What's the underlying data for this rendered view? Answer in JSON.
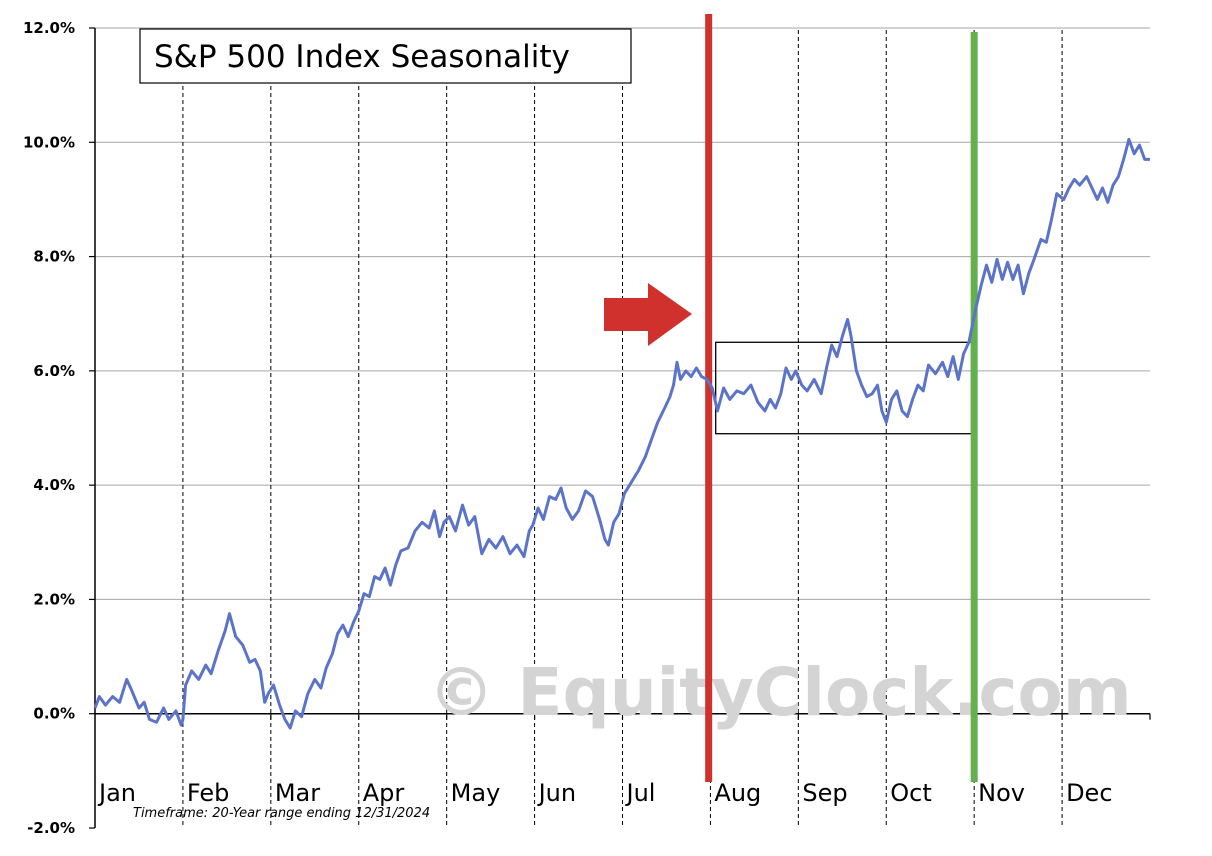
{
  "chart_data": {
    "type": "line",
    "title": "S&P 500 Index Seasonality",
    "watermark": "© EquityClock.com",
    "timeframe_note": "Timeframe:  20-Year range ending 12/31/2024",
    "ylim": [
      -2.0,
      12.0
    ],
    "y_ticks": [
      -2.0,
      0.0,
      2.0,
      4.0,
      6.0,
      8.0,
      10.0,
      12.0
    ],
    "y_tick_labels": [
      "-2.0%",
      "0.0%",
      "2.0%",
      "4.0%",
      "6.0%",
      "8.0%",
      "10.0%",
      "12.0%"
    ],
    "months": [
      "Jan",
      "Feb",
      "Mar",
      "Apr",
      "May",
      "Jun",
      "Jul",
      "Aug",
      "Sep",
      "Oct",
      "Nov",
      "Dec"
    ],
    "grid": "horizontal solid, vertical dashed at month boundaries",
    "line_color": "#5b74c9",
    "x_unit": "month of year (0 = Jan 1, 12 = Dec 31)",
    "series": [
      {
        "values": [
          [
            0.0,
            0.1
          ],
          [
            0.05,
            0.3
          ],
          [
            0.12,
            0.15
          ],
          [
            0.2,
            0.3
          ],
          [
            0.28,
            0.2
          ],
          [
            0.36,
            0.6
          ],
          [
            0.42,
            0.4
          ],
          [
            0.5,
            0.1
          ],
          [
            0.56,
            0.2
          ],
          [
            0.62,
            -0.1
          ],
          [
            0.7,
            -0.15
          ],
          [
            0.78,
            0.1
          ],
          [
            0.84,
            -0.1
          ],
          [
            0.92,
            0.05
          ],
          [
            0.98,
            -0.2
          ],
          [
            1.0,
            -0.1
          ],
          [
            1.03,
            0.5
          ],
          [
            1.1,
            0.75
          ],
          [
            1.18,
            0.6
          ],
          [
            1.26,
            0.85
          ],
          [
            1.32,
            0.7
          ],
          [
            1.4,
            1.1
          ],
          [
            1.48,
            1.45
          ],
          [
            1.53,
            1.75
          ],
          [
            1.6,
            1.35
          ],
          [
            1.68,
            1.2
          ],
          [
            1.76,
            0.9
          ],
          [
            1.82,
            0.95
          ],
          [
            1.88,
            0.75
          ],
          [
            1.93,
            0.2
          ],
          [
            1.97,
            0.35
          ],
          [
            2.03,
            0.5
          ],
          [
            2.1,
            0.15
          ],
          [
            2.16,
            -0.1
          ],
          [
            2.22,
            -0.25
          ],
          [
            2.28,
            0.05
          ],
          [
            2.35,
            -0.05
          ],
          [
            2.42,
            0.35
          ],
          [
            2.5,
            0.6
          ],
          [
            2.57,
            0.45
          ],
          [
            2.63,
            0.8
          ],
          [
            2.7,
            1.05
          ],
          [
            2.76,
            1.4
          ],
          [
            2.82,
            1.55
          ],
          [
            2.88,
            1.35
          ],
          [
            2.94,
            1.6
          ],
          [
            3.0,
            1.8
          ],
          [
            3.06,
            2.1
          ],
          [
            3.12,
            2.05
          ],
          [
            3.18,
            2.4
          ],
          [
            3.24,
            2.35
          ],
          [
            3.3,
            2.55
          ],
          [
            3.36,
            2.25
          ],
          [
            3.42,
            2.6
          ],
          [
            3.48,
            2.85
          ],
          [
            3.56,
            2.9
          ],
          [
            3.64,
            3.2
          ],
          [
            3.72,
            3.35
          ],
          [
            3.8,
            3.25
          ],
          [
            3.86,
            3.55
          ],
          [
            3.92,
            3.1
          ],
          [
            3.97,
            3.35
          ],
          [
            4.03,
            3.45
          ],
          [
            4.1,
            3.2
          ],
          [
            4.18,
            3.65
          ],
          [
            4.25,
            3.3
          ],
          [
            4.32,
            3.45
          ],
          [
            4.4,
            2.8
          ],
          [
            4.48,
            3.05
          ],
          [
            4.56,
            2.9
          ],
          [
            4.64,
            3.1
          ],
          [
            4.72,
            2.8
          ],
          [
            4.8,
            2.95
          ],
          [
            4.88,
            2.75
          ],
          [
            4.94,
            3.2
          ],
          [
            4.98,
            3.3
          ],
          [
            5.04,
            3.6
          ],
          [
            5.1,
            3.4
          ],
          [
            5.17,
            3.8
          ],
          [
            5.24,
            3.75
          ],
          [
            5.3,
            3.95
          ],
          [
            5.36,
            3.6
          ],
          [
            5.43,
            3.4
          ],
          [
            5.5,
            3.55
          ],
          [
            5.58,
            3.9
          ],
          [
            5.66,
            3.8
          ],
          [
            5.74,
            3.4
          ],
          [
            5.8,
            3.05
          ],
          [
            5.84,
            2.95
          ],
          [
            5.9,
            3.35
          ],
          [
            5.96,
            3.5
          ],
          [
            6.02,
            3.85
          ],
          [
            6.1,
            4.05
          ],
          [
            6.18,
            4.25
          ],
          [
            6.26,
            4.5
          ],
          [
            6.33,
            4.8
          ],
          [
            6.4,
            5.1
          ],
          [
            6.48,
            5.35
          ],
          [
            6.54,
            5.55
          ],
          [
            6.58,
            5.75
          ],
          [
            6.62,
            6.15
          ],
          [
            6.66,
            5.85
          ],
          [
            6.72,
            6.0
          ],
          [
            6.78,
            5.9
          ],
          [
            6.84,
            6.05
          ],
          [
            6.9,
            5.9
          ],
          [
            6.96,
            5.85
          ],
          [
            7.02,
            5.7
          ],
          [
            7.08,
            5.3
          ],
          [
            7.15,
            5.7
          ],
          [
            7.22,
            5.5
          ],
          [
            7.3,
            5.65
          ],
          [
            7.38,
            5.6
          ],
          [
            7.46,
            5.75
          ],
          [
            7.54,
            5.45
          ],
          [
            7.62,
            5.3
          ],
          [
            7.68,
            5.5
          ],
          [
            7.74,
            5.35
          ],
          [
            7.8,
            5.6
          ],
          [
            7.86,
            6.05
          ],
          [
            7.92,
            5.85
          ],
          [
            7.97,
            6.0
          ],
          [
            8.04,
            5.75
          ],
          [
            8.1,
            5.65
          ],
          [
            8.18,
            5.85
          ],
          [
            8.26,
            5.6
          ],
          [
            8.32,
            6.05
          ],
          [
            8.38,
            6.45
          ],
          [
            8.44,
            6.25
          ],
          [
            8.5,
            6.6
          ],
          [
            8.56,
            6.9
          ],
          [
            8.6,
            6.6
          ],
          [
            8.66,
            6.0
          ],
          [
            8.72,
            5.75
          ],
          [
            8.78,
            5.55
          ],
          [
            8.84,
            5.6
          ],
          [
            8.9,
            5.75
          ],
          [
            8.95,
            5.3
          ],
          [
            9.0,
            5.1
          ],
          [
            9.06,
            5.5
          ],
          [
            9.12,
            5.65
          ],
          [
            9.18,
            5.3
          ],
          [
            9.24,
            5.2
          ],
          [
            9.3,
            5.5
          ],
          [
            9.36,
            5.75
          ],
          [
            9.42,
            5.65
          ],
          [
            9.48,
            6.1
          ],
          [
            9.56,
            5.95
          ],
          [
            9.64,
            6.15
          ],
          [
            9.7,
            5.9
          ],
          [
            9.76,
            6.25
          ],
          [
            9.82,
            5.85
          ],
          [
            9.88,
            6.3
          ],
          [
            9.94,
            6.5
          ],
          [
            10.02,
            7.1
          ],
          [
            10.08,
            7.5
          ],
          [
            10.14,
            7.85
          ],
          [
            10.2,
            7.55
          ],
          [
            10.26,
            7.95
          ],
          [
            10.32,
            7.6
          ],
          [
            10.38,
            7.9
          ],
          [
            10.44,
            7.6
          ],
          [
            10.5,
            7.85
          ],
          [
            10.56,
            7.35
          ],
          [
            10.62,
            7.7
          ],
          [
            10.68,
            7.95
          ],
          [
            10.76,
            8.3
          ],
          [
            10.82,
            8.25
          ],
          [
            10.88,
            8.65
          ],
          [
            10.94,
            9.1
          ],
          [
            11.02,
            9.0
          ],
          [
            11.08,
            9.2
          ],
          [
            11.14,
            9.35
          ],
          [
            11.2,
            9.25
          ],
          [
            11.28,
            9.4
          ],
          [
            11.34,
            9.2
          ],
          [
            11.4,
            9.0
          ],
          [
            11.46,
            9.2
          ],
          [
            11.52,
            8.95
          ],
          [
            11.58,
            9.25
          ],
          [
            11.64,
            9.4
          ],
          [
            11.7,
            9.7
          ],
          [
            11.76,
            10.05
          ],
          [
            11.82,
            9.8
          ],
          [
            11.88,
            9.95
          ],
          [
            11.94,
            9.7
          ],
          [
            12.0,
            9.7
          ]
        ]
      }
    ],
    "annotations": [
      {
        "type": "vertical-line",
        "color": "#d0312d",
        "x": 6.98
      },
      {
        "type": "vertical-line",
        "color": "#63b04f",
        "x": 10.0
      },
      {
        "type": "arrow",
        "color": "#d0312d",
        "direction": "right"
      },
      {
        "type": "box",
        "x_range": [
          7.06,
          9.97
        ],
        "y_range": [
          4.9,
          6.5
        ]
      }
    ]
  }
}
